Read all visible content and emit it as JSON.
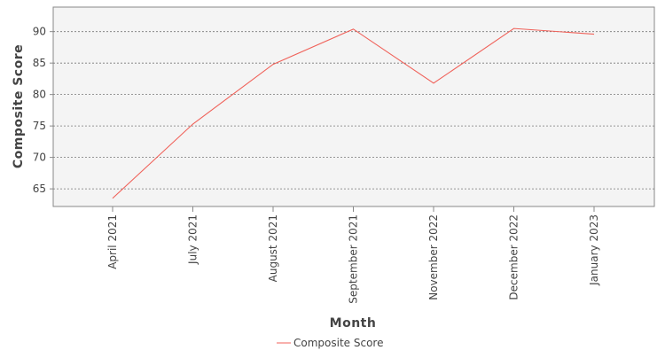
{
  "chart_data": {
    "type": "line",
    "categories": [
      "April 2021",
      "July 2021",
      "August 2021",
      "September 2021",
      "November 2022",
      "December 2022",
      "January 2023"
    ],
    "series": [
      {
        "name": "Composite Score",
        "values": [
          63.5,
          75.3,
          84.8,
          90.4,
          81.8,
          90.5,
          89.6
        ],
        "color": "#f0625a"
      }
    ],
    "xlabel": "Month",
    "ylabel": "Composite Score",
    "yticks": [
      65,
      70,
      75,
      80,
      85,
      90
    ],
    "ylim": [
      62.2,
      93.9
    ],
    "grid": "horizontal-dashed",
    "legend_position": "bottom"
  }
}
